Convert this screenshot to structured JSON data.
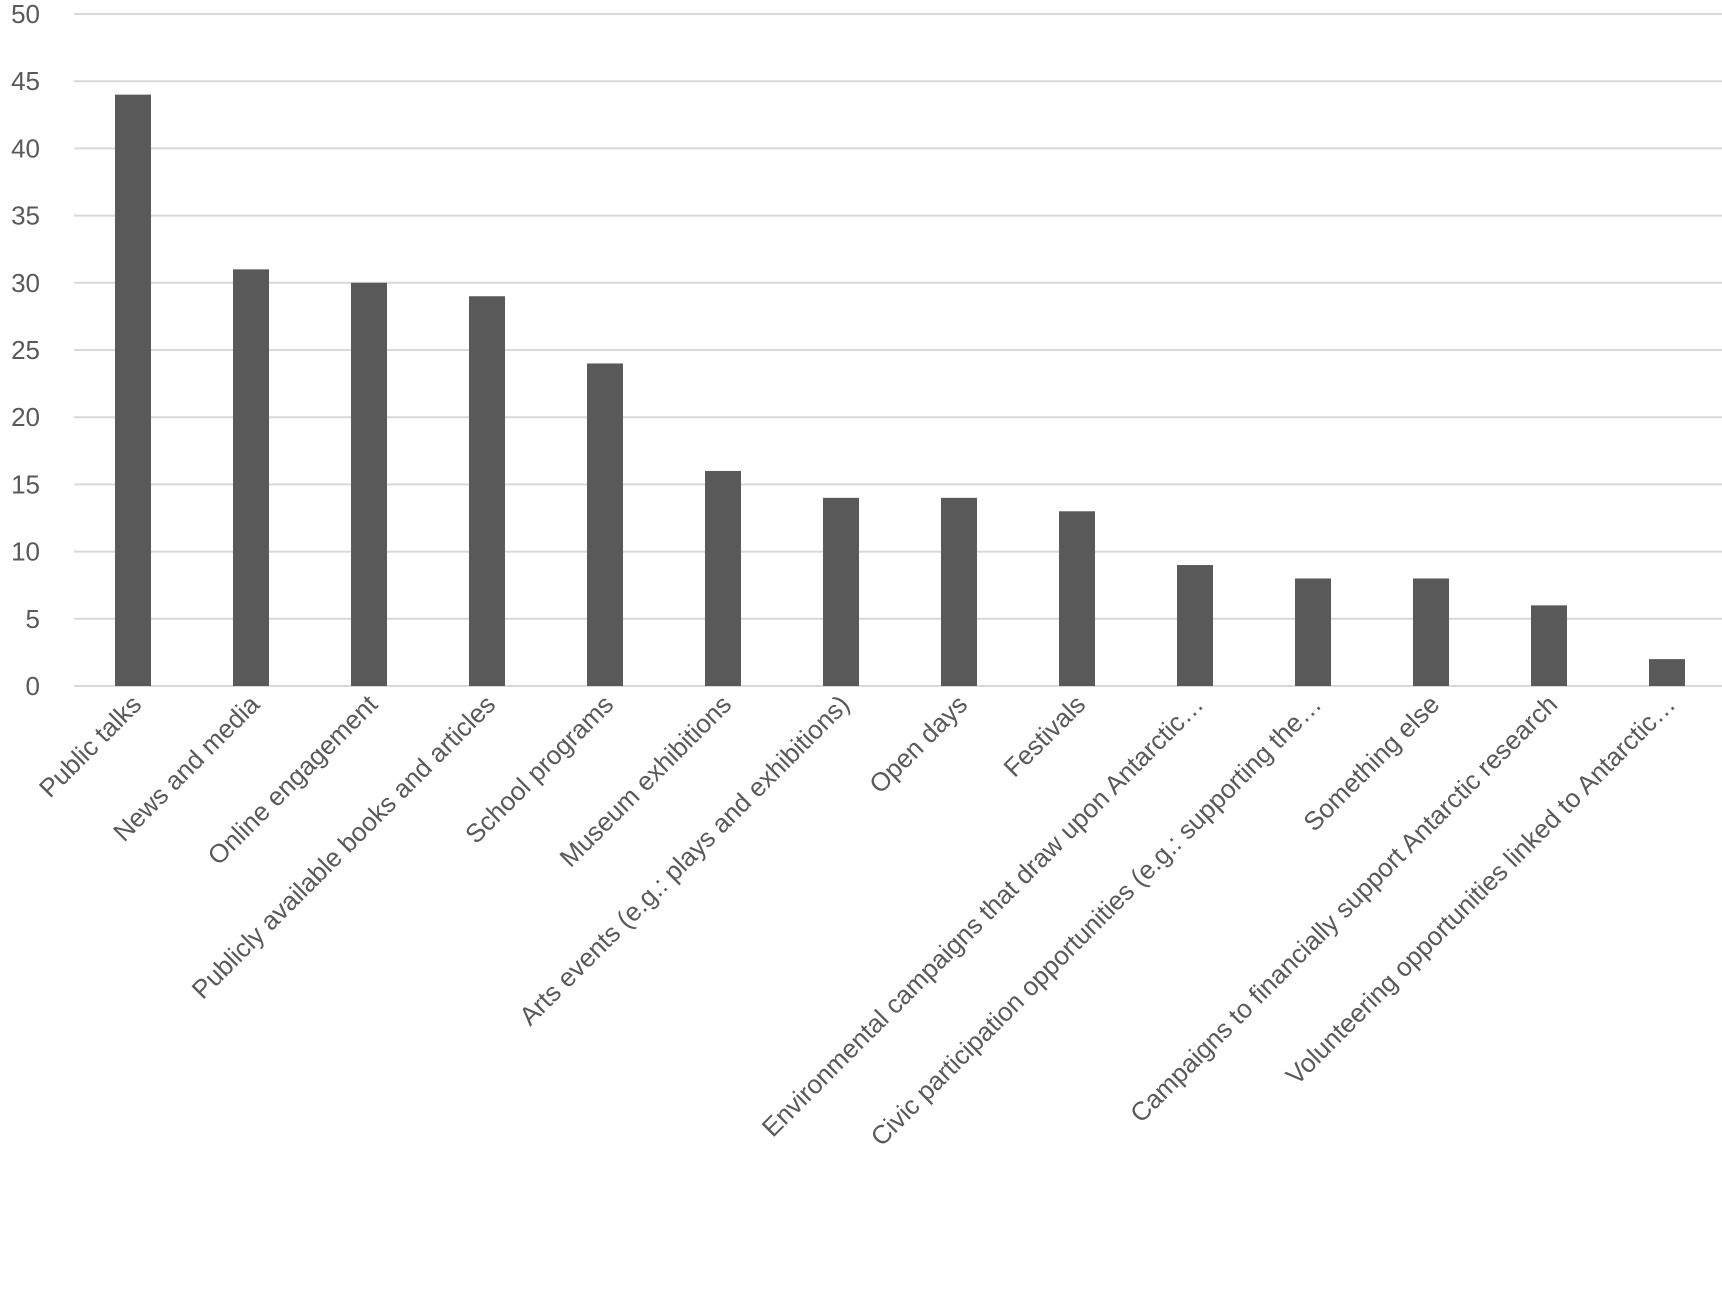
{
  "chart_data": {
    "type": "bar",
    "categories": [
      "Public talks",
      "News and media",
      "Online engagement",
      "Publicly available books and articles",
      "School programs",
      "Museum exhibitions",
      "Arts events (e.g.: plays and exhibitions)",
      "Open days",
      "Festivals",
      "Environmental campaigns that draw upon Antarctic…",
      "Civic participation opportunities (e.g.: supporting the…",
      "Something else",
      "Campaigns to financially support Antarctic research",
      "Volunteering opportunities linked to Antarctic…"
    ],
    "values": [
      44,
      31,
      30,
      29,
      24,
      16,
      14,
      14,
      13,
      9,
      8,
      8,
      6,
      2
    ],
    "ylim": [
      0,
      50
    ],
    "yticks": [
      0,
      5,
      10,
      15,
      20,
      25,
      30,
      35,
      40,
      45,
      50
    ],
    "grid": true,
    "legend": "none",
    "colors": {
      "bar": "#595959",
      "grid": "#d9d9d9",
      "text": "#595959"
    }
  }
}
